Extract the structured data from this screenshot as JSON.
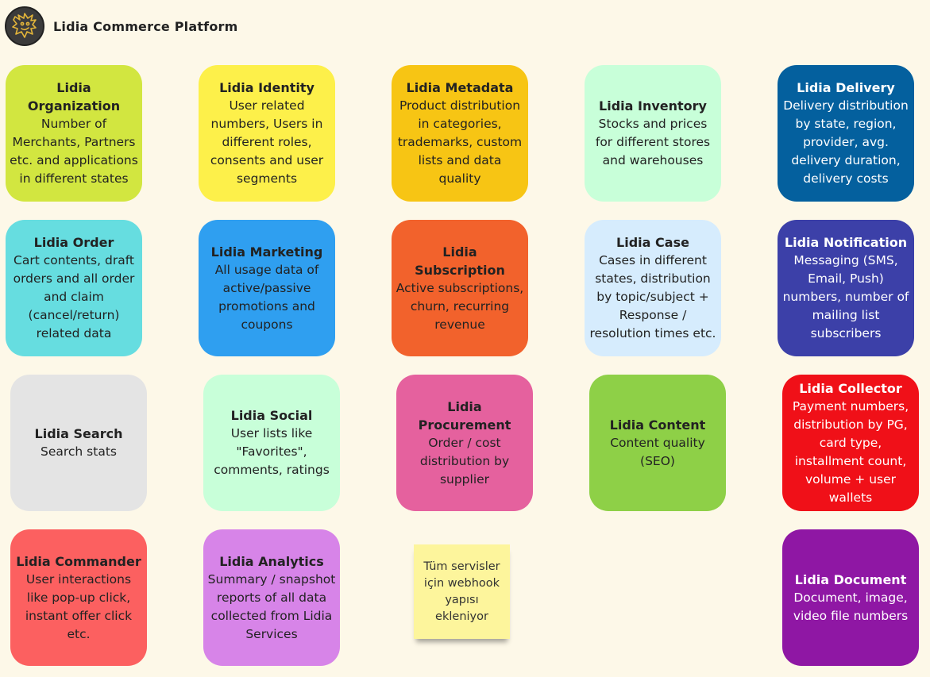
{
  "header": {
    "title": "Lidia Commerce Platform",
    "logo": "lion-logo-icon"
  },
  "cards": [
    {
      "title": "Lidia Organization",
      "desc": "Number of Merchants, Partners etc. and applications in different states",
      "color": "#d2e640"
    },
    {
      "title": "Lidia Identity",
      "desc": "User related numbers, Users in different roles, consents and user segments",
      "color": "#fdf04a"
    },
    {
      "title": "Lidia Metadata",
      "desc": "Product distribution in categories, trademarks, custom lists and data quality",
      "color": "#f7c514"
    },
    {
      "title": "Lidia Inventory",
      "desc": "Stocks and prices for different stores and warehouses",
      "color": "#c8ffd9"
    },
    {
      "title": "Lidia Delivery",
      "desc": "Delivery distribution by state, region, provider, avg. delivery duration, delivery costs",
      "color": "#04609e"
    },
    {
      "title": "Lidia Order",
      "desc": "Cart contents, draft orders and all order and claim (cancel/return) related data",
      "color": "#66dde0"
    },
    {
      "title": "Lidia Marketing",
      "desc": "All usage data of active/passive promotions and coupons",
      "color": "#2f9ff0"
    },
    {
      "title": "Lidia Subscription",
      "desc": "Active subscriptions, churn, recurring revenue",
      "color": "#f2622c"
    },
    {
      "title": "Lidia Case",
      "desc": "Cases in different states, distribution by topic/subject + Response / resolution times etc.",
      "color": "#d6ecfd"
    },
    {
      "title": "Lidia Notification",
      "desc": "Messaging (SMS, Email, Push) numbers, number of mailing list subscribers",
      "color": "#3c40a8"
    },
    {
      "title": "Lidia Search",
      "desc": "Search stats",
      "color": "#e4e4e4"
    },
    {
      "title": "Lidia Social",
      "desc": "User lists like \"Favorites\", comments, ratings",
      "color": "#c8ffd9"
    },
    {
      "title": "Lidia Procurement",
      "desc": "Order / cost distribution by supplier",
      "color": "#e5619e"
    },
    {
      "title": "Lidia Content",
      "desc": "Content quality (SEO)",
      "color": "#8ed047"
    },
    {
      "title": "Lidia Collector",
      "desc": "Payment numbers, distribution by PG, card type, installment count, volume + user wallets",
      "color": "#f01018"
    },
    {
      "title": "Lidia Commander",
      "desc": "User interactions like pop-up click, instant offer click etc.",
      "color": "#fc6060"
    },
    {
      "title": "Lidia Analytics",
      "desc": "Summary / snapshot reports of all data collected from Lidia Services",
      "color": "#d784e8"
    },
    {
      "title": "Lidia Document",
      "desc": "Document, image, video file numbers",
      "color": "#8f17a4"
    }
  ],
  "note": {
    "text": "Tüm servisler için webhook yapısı ekleniyor",
    "color": "#fdf59c"
  }
}
